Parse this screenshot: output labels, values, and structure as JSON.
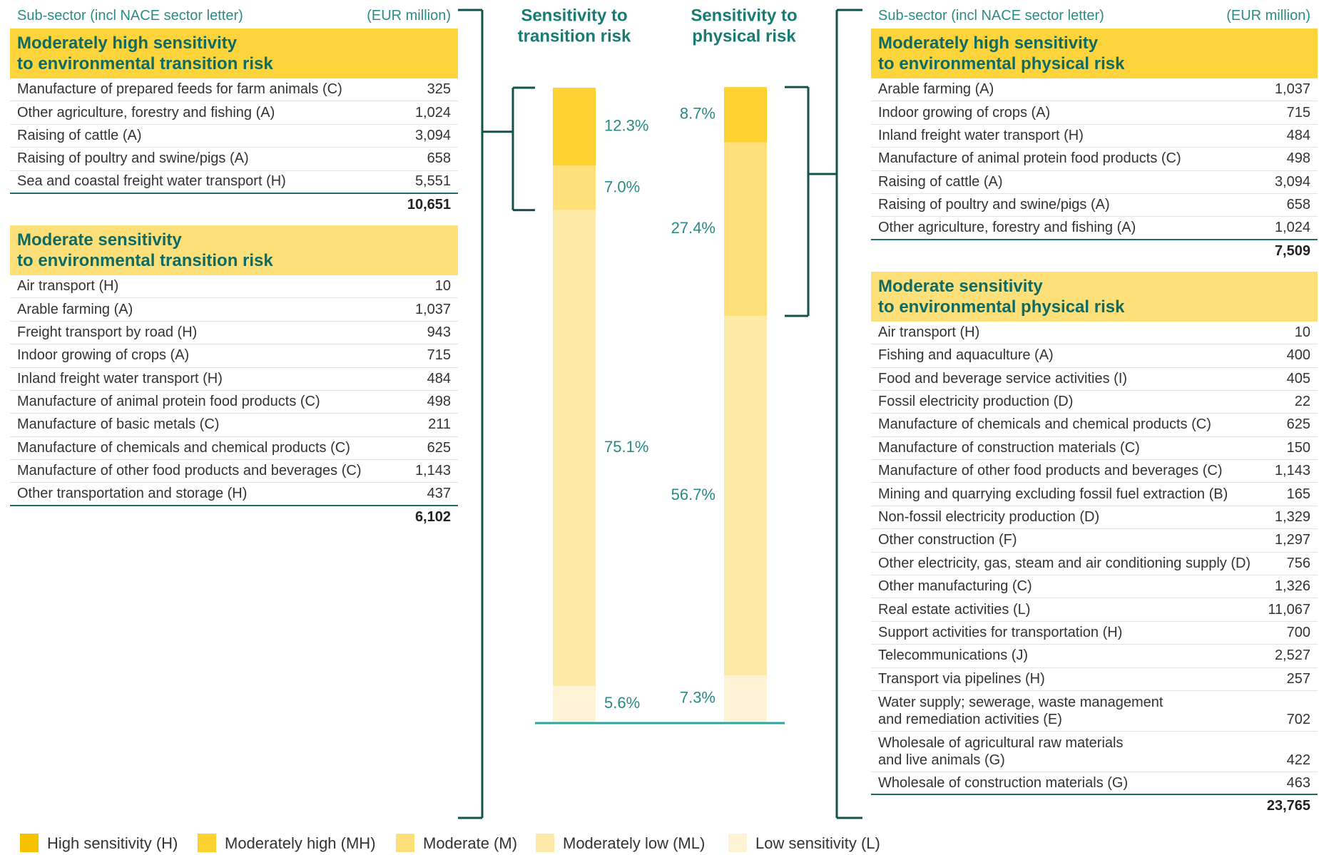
{
  "left_table": {
    "header": [
      "Sub-sector (incl NACE sector letter)",
      "(EUR million)"
    ],
    "groups": [
      {
        "title": [
          "Moderately high sensitivity",
          "to environmental transition risk"
        ],
        "rows": [
          [
            "Manufacture of prepared feeds for farm animals (C)",
            "325"
          ],
          [
            "Other agriculture, forestry and fishing (A)",
            "1,024"
          ],
          [
            "Raising of cattle (A)",
            "3,094"
          ],
          [
            "Raising of poultry and swine/pigs (A)",
            "658"
          ],
          [
            "Sea and coastal freight water transport (H)",
            "5,551"
          ]
        ],
        "total": "10,651"
      },
      {
        "title": [
          "Moderate sensitivity",
          "to environmental transition risk"
        ],
        "rows": [
          [
            "Air transport (H)",
            "10"
          ],
          [
            "Arable farming (A)",
            "1,037"
          ],
          [
            "Freight transport by road (H)",
            "943"
          ],
          [
            "Indoor growing of crops (A)",
            "715"
          ],
          [
            "Inland freight water transport (H)",
            "484"
          ],
          [
            "Manufacture of animal protein food products (C)",
            "498"
          ],
          [
            "Manufacture of basic metals (C)",
            "211"
          ],
          [
            "Manufacture of chemicals and chemical products (C)",
            "625"
          ],
          [
            "Manufacture of other food products and beverages (C)",
            "1,143"
          ],
          [
            "Other transportation and storage (H)",
            "437"
          ]
        ],
        "total": "6,102"
      }
    ]
  },
  "right_table": {
    "header": [
      "Sub-sector (incl NACE sector letter)",
      "(EUR million)"
    ],
    "groups": [
      {
        "title": [
          "Moderately high sensitivity",
          "to environmental physical risk"
        ],
        "rows": [
          [
            "Arable farming (A)",
            "1,037"
          ],
          [
            "Indoor growing of crops (A)",
            "715"
          ],
          [
            "Inland freight water transport (H)",
            "484"
          ],
          [
            "Manufacture of animal protein food products (C)",
            "498"
          ],
          [
            "Raising of cattle (A)",
            "3,094"
          ],
          [
            "Raising of poultry and swine/pigs (A)",
            "658"
          ],
          [
            "Other agriculture, forestry and fishing (A)",
            "1,024"
          ]
        ],
        "total": "7,509"
      },
      {
        "title": [
          "Moderate sensitivity",
          "to environmental physical risk"
        ],
        "rows": [
          [
            "Air transport (H)",
            "10"
          ],
          [
            "Fishing and aquaculture (A)",
            "400"
          ],
          [
            "Food and beverage service activities (I)",
            "405"
          ],
          [
            "Fossil electricity production (D)",
            "22"
          ],
          [
            "Manufacture of chemicals and chemical products (C)",
            "625"
          ],
          [
            "Manufacture of construction materials (C)",
            "150"
          ],
          [
            "Manufacture of other food products and beverages (C)",
            "1,143"
          ],
          [
            "Mining and quarrying excluding fossil fuel extraction (B)",
            "165"
          ],
          [
            "Non-fossil electricity production (D)",
            "1,329"
          ],
          [
            "Other construction (F)",
            "1,297"
          ],
          [
            "Other electricity, gas, steam and air conditioning supply (D)",
            "756"
          ],
          [
            "Other manufacturing (C)",
            "1,326"
          ],
          [
            "Real estate activities (L)",
            "11,067"
          ],
          [
            "Support activities for transportation (H)",
            "700"
          ],
          [
            "Telecommunications (J)",
            "2,527"
          ],
          [
            "Transport via pipelines (H)",
            "257"
          ],
          [
            [
              "Water supply; sewerage, waste management",
              "and remediation activities (E)"
            ],
            "702"
          ],
          [
            [
              "Wholesale of agricultural raw materials",
              "and live animals (G)"
            ],
            "422"
          ],
          [
            "Wholesale of construction materials (G)",
            "463"
          ]
        ],
        "total": "23,765"
      }
    ]
  },
  "chart_data": {
    "type": "stacked_bar",
    "categories": [
      [
        "Sensitivity to",
        "transition risk"
      ],
      [
        "Sensitivity to",
        "physical risk"
      ]
    ],
    "ylim": [
      0,
      100
    ],
    "series": [
      {
        "name": "High sensitivity (H)",
        "color": "#f6c200",
        "values": [
          null,
          null
        ]
      },
      {
        "name": "Moderately high (MH)",
        "color": "#fdd12f",
        "values": [
          12.3,
          8.7
        ],
        "value_labels": [
          "12.3%",
          "8.7%"
        ]
      },
      {
        "name": "Moderate (M)",
        "color": "#fde07a",
        "values": [
          7.0,
          27.4
        ],
        "value_labels": [
          "7.0%",
          "27.4%"
        ]
      },
      {
        "name": "Moderately low (ML)",
        "color": "#feeaa8",
        "values": [
          75.1,
          56.7
        ],
        "value_labels": [
          "75.1%",
          "56.7%"
        ]
      },
      {
        "name": "Low sensitivity (L)",
        "color": "#fff3d6",
        "values": [
          5.6,
          7.3
        ],
        "value_labels": [
          "5.6%",
          "7.3%"
        ]
      }
    ]
  }
}
